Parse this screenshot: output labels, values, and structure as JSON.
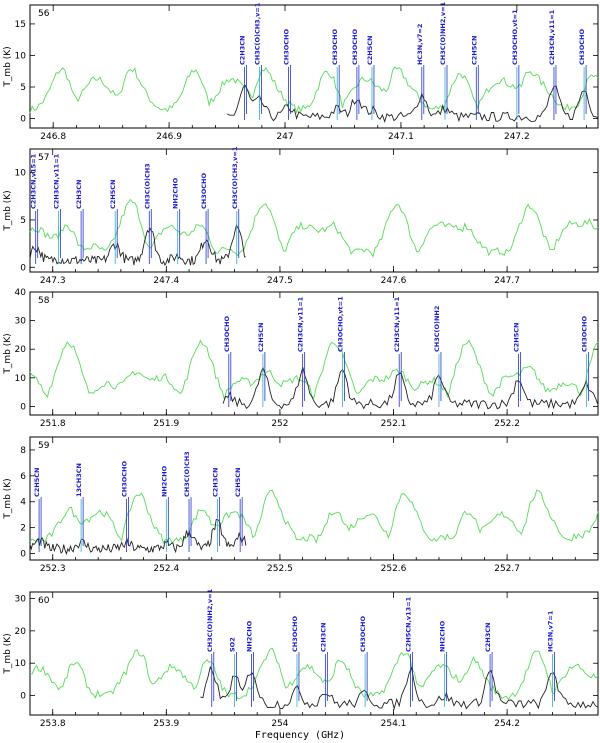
{
  "figure": {
    "xlabel": "Frequency (GHz)",
    "colors": {
      "model": "#55dd55",
      "observed": "#222222",
      "labels": "#1a1acc",
      "markers": "#2233cc"
    }
  },
  "chart_data": [
    {
      "type": "line",
      "panel": "56",
      "ylabel": "T_mb (K)",
      "xlim": [
        246.78,
        247.27
      ],
      "ylim": [
        -1.5,
        18
      ],
      "xticks": [
        246.8,
        246.9,
        247,
        247.1,
        247.2
      ],
      "xtick_labels": [
        "246.8",
        "246.9",
        "247",
        "247.1",
        "247.2"
      ],
      "yticks": [
        0,
        5,
        10,
        15
      ],
      "observed_xrange": [
        246.95,
        247.27
      ],
      "labels": [
        {
          "x": 246.965,
          "text": "C2H3CN"
        },
        {
          "x": 246.978,
          "text": "CH3C(O)CH3,v=1"
        },
        {
          "x": 247.003,
          "text": "CH3OCHO"
        },
        {
          "x": 247.045,
          "text": "CH3OCHO"
        },
        {
          "x": 247.062,
          "text": "CH3OCHO"
        },
        {
          "x": 247.075,
          "text": "C2H5CN"
        },
        {
          "x": 247.118,
          "text": "HC3N,v7=2"
        },
        {
          "x": 247.138,
          "text": "CH3C(O)NH2,v=1"
        },
        {
          "x": 247.165,
          "text": "C2H5CN"
        },
        {
          "x": 247.2,
          "text": "CH3OCHO,vt=1"
        },
        {
          "x": 247.232,
          "text": "C2H3CN,v11=1"
        },
        {
          "x": 247.258,
          "text": "CH3OCHO"
        }
      ]
    },
    {
      "type": "line",
      "panel": "57",
      "ylabel": "T_mb (K)",
      "xlim": [
        247.28,
        247.78
      ],
      "ylim": [
        -0.5,
        12.5
      ],
      "xticks": [
        247.3,
        247.4,
        247.5,
        247.6,
        247.7
      ],
      "xtick_labels": [
        "247.3",
        "247.4",
        "247.5",
        "247.6",
        "247.7"
      ],
      "yticks": [
        0,
        5,
        10
      ],
      "observed_xrange": [
        247.28,
        247.47
      ],
      "labels": [
        {
          "x": 247.285,
          "text": "C2H3CN,v15=1"
        },
        {
          "x": 247.305,
          "text": "C2H3CN,v11=1"
        },
        {
          "x": 247.325,
          "text": "C2H3CN"
        },
        {
          "x": 247.355,
          "text": "C2H5CN"
        },
        {
          "x": 247.385,
          "text": "CH3C(O)CH3"
        },
        {
          "x": 247.41,
          "text": "NH2CHO"
        },
        {
          "x": 247.435,
          "text": "CH3OCHO"
        },
        {
          "x": 247.462,
          "text": "CH3C(O)CH3,v=1"
        }
      ]
    },
    {
      "type": "line",
      "panel": "58",
      "ylabel": "T_mb (K)",
      "xlim": [
        251.78,
        252.28
      ],
      "ylim": [
        -3,
        40
      ],
      "xticks": [
        251.8,
        251.9,
        252,
        252.1,
        252.2
      ],
      "xtick_labels": [
        "251.8",
        "251.9",
        "252",
        "252.1",
        "252.2"
      ],
      "yticks": [
        0,
        10,
        20,
        30,
        40
      ],
      "observed_xrange": [
        251.95,
        252.28
      ],
      "labels": [
        {
          "x": 251.955,
          "text": "CH3OCHO"
        },
        {
          "x": 251.985,
          "text": "C2H5CN"
        },
        {
          "x": 252.02,
          "text": "C2H3CN,v11=1"
        },
        {
          "x": 252.055,
          "text": "CH3OCHO,vt=1"
        },
        {
          "x": 252.105,
          "text": "C2H3CN,v11=1"
        },
        {
          "x": 252.14,
          "text": "CH3C(O)NH2"
        },
        {
          "x": 252.21,
          "text": "C2H5CN"
        },
        {
          "x": 252.27,
          "text": "CH3OCHO"
        }
      ]
    },
    {
      "type": "line",
      "panel": "59",
      "ylabel": "T_mb (K)",
      "xlim": [
        252.28,
        252.78
      ],
      "ylim": [
        -0.5,
        9
      ],
      "xticks": [
        252.3,
        252.4,
        252.5,
        252.6,
        252.7
      ],
      "xtick_labels": [
        "252.3",
        "252.4",
        "252.5",
        "252.6",
        "252.7"
      ],
      "yticks": [
        0,
        2,
        4,
        6,
        8
      ],
      "observed_xrange": [
        252.28,
        252.47
      ],
      "labels": [
        {
          "x": 252.288,
          "text": "C2H5CN"
        },
        {
          "x": 252.325,
          "text": "13CH3CN"
        },
        {
          "x": 252.365,
          "text": "CH3OCHO"
        },
        {
          "x": 252.4,
          "text": "NH2CHO"
        },
        {
          "x": 252.42,
          "text": "CH3C(O)CH3"
        },
        {
          "x": 252.445,
          "text": "C2H3CN"
        },
        {
          "x": 252.465,
          "text": "C2H5CN"
        }
      ]
    },
    {
      "type": "line",
      "panel": "60",
      "ylabel": "T_mb (K)",
      "xlim": [
        253.78,
        254.28
      ],
      "ylim": [
        -6,
        32
      ],
      "xticks": [
        253.8,
        253.9,
        254,
        254.1,
        254.2
      ],
      "xtick_labels": [
        "253.8",
        "253.9",
        "254",
        "254.1",
        "254.2"
      ],
      "yticks": [
        0,
        10,
        20,
        30
      ],
      "observed_xrange": [
        253.93,
        254.28
      ],
      "labels": [
        {
          "x": 253.94,
          "text": "CH3C(O)NH2,v=1"
        },
        {
          "x": 253.96,
          "text": "SO2"
        },
        {
          "x": 253.975,
          "text": "NH2CHO"
        },
        {
          "x": 254.015,
          "text": "CH3OCHO"
        },
        {
          "x": 254.04,
          "text": "C2H3CN"
        },
        {
          "x": 254.075,
          "text": "CH3OCHO"
        },
        {
          "x": 254.115,
          "text": "C2H5CN,v13=1"
        },
        {
          "x": 254.145,
          "text": "NH2CHO"
        },
        {
          "x": 254.185,
          "text": "C2H3CN"
        },
        {
          "x": 254.24,
          "text": "HC3N,v7=1"
        }
      ]
    }
  ]
}
